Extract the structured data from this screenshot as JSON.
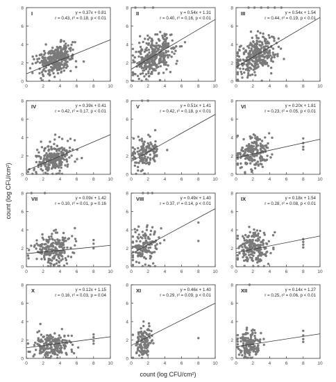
{
  "figure": {
    "ylabel": "count (log CFU/cm²)",
    "xlabel": "count (log CFU/cm²)"
  },
  "chart_data": [
    {
      "type": "scatter",
      "label": "I",
      "equation": "y = 0.37x + 0.81",
      "stats": "r = 0.43, r² = 0.18, p < 0.01",
      "slope": 0.37,
      "intercept": 0.81,
      "cx": 3.5,
      "cy": 2.4,
      "sx": 1.1,
      "sy": 0.8,
      "n": 320,
      "outliers": [],
      "xlim": [
        0,
        10
      ],
      "ylim": [
        0,
        8
      ],
      "xticks": [
        0,
        2,
        4,
        6,
        8,
        10
      ],
      "yticks": [
        0,
        2,
        4,
        6,
        8
      ]
    },
    {
      "type": "scatter",
      "label": "II",
      "equation": "y = 0.54x + 1.31",
      "stats": "r = 0.40, r² = 0.16, p < 0.01",
      "slope": 0.54,
      "intercept": 1.31,
      "cx": 2.7,
      "cy": 2.6,
      "sx": 1.2,
      "sy": 1.0,
      "n": 340,
      "outliers": [
        [
          0.5,
          8
        ],
        [
          1.6,
          8
        ],
        [
          2.6,
          8
        ]
      ],
      "xlim": [
        0,
        10
      ],
      "ylim": [
        0,
        8
      ],
      "xticks": [
        0,
        2,
        4,
        6,
        8,
        10
      ],
      "yticks": [
        0,
        2,
        4,
        6,
        8
      ]
    },
    {
      "type": "scatter",
      "label": "III",
      "equation": "y = 0.54x + 1.54",
      "stats": "r = 0.44, r² = 0.19, p < 0.01",
      "slope": 0.54,
      "intercept": 1.54,
      "cx": 2.5,
      "cy": 2.8,
      "sx": 1.1,
      "sy": 1.0,
      "n": 330,
      "outliers": [
        [
          1.5,
          8
        ],
        [
          2.2,
          8
        ],
        [
          3.0,
          8
        ],
        [
          3.8,
          8
        ],
        [
          4.6,
          8
        ],
        [
          5.4,
          8
        ]
      ],
      "xlim": [
        0,
        10
      ],
      "ylim": [
        0,
        8
      ],
      "xticks": [
        0,
        2,
        4,
        6,
        8,
        10
      ],
      "yticks": [
        0,
        2,
        4,
        6,
        8
      ]
    },
    {
      "type": "scatter",
      "label": "IV",
      "equation": "y = 0.39x + 0.41",
      "stats": "r = 0.42, r² = 0.17, p < 0.01",
      "slope": 0.39,
      "intercept": 0.41,
      "cx": 3.2,
      "cy": 1.7,
      "sx": 1.1,
      "sy": 0.8,
      "n": 250,
      "outliers": [],
      "xlim": [
        0,
        10
      ],
      "ylim": [
        0,
        8
      ],
      "xticks": [
        0,
        2,
        4,
        6,
        8,
        10
      ],
      "yticks": [
        0,
        2,
        4,
        6,
        8
      ]
    },
    {
      "type": "scatter",
      "label": "V",
      "equation": "y = 0.51x + 1.41",
      "stats": "r = 0.42, r² = 0.18, p < 0.01",
      "slope": 0.51,
      "intercept": 1.41,
      "cx": 1.6,
      "cy": 2.3,
      "sx": 0.8,
      "sy": 0.9,
      "n": 140,
      "outliers": [
        [
          1.3,
          8
        ],
        [
          2.0,
          8
        ]
      ],
      "xlim": [
        0,
        10
      ],
      "ylim": [
        0,
        8
      ],
      "xticks": [
        0,
        2,
        4,
        6,
        8,
        10
      ],
      "yticks": [
        0,
        2,
        4,
        6,
        8
      ]
    },
    {
      "type": "scatter",
      "label": "VI",
      "equation": "y = 0.20x + 1.81",
      "stats": "r = 0.23, r² = 0.05, p < 0.01",
      "slope": 0.2,
      "intercept": 1.81,
      "cx": 2.0,
      "cy": 2.3,
      "sx": 0.9,
      "sy": 0.9,
      "n": 190,
      "outliers": [
        [
          8,
          3.9
        ],
        [
          8,
          3.4
        ],
        [
          8,
          3.0
        ],
        [
          8,
          2.7
        ]
      ],
      "xlim": [
        0,
        10
      ],
      "ylim": [
        0,
        8
      ],
      "xticks": [
        0,
        2,
        4,
        6,
        8,
        10
      ],
      "yticks": [
        0,
        2,
        4,
        6,
        8
      ]
    },
    {
      "type": "scatter",
      "label": "VII",
      "equation": "y = 0.09x + 1.42",
      "stats": "r = 0.10, r² = 0.01, p = 0.16",
      "slope": 0.09,
      "intercept": 1.42,
      "cx": 3.3,
      "cy": 1.8,
      "sx": 1.1,
      "sy": 0.8,
      "n": 220,
      "outliers": [
        [
          0.6,
          8
        ],
        [
          2.2,
          8
        ],
        [
          8,
          2.9
        ],
        [
          8,
          2.5
        ],
        [
          8,
          2.0
        ]
      ],
      "xlim": [
        0,
        10
      ],
      "ylim": [
        0,
        8
      ],
      "xticks": [
        0,
        2,
        4,
        6,
        8,
        10
      ],
      "yticks": [
        0,
        2,
        4,
        6,
        8
      ]
    },
    {
      "type": "scatter",
      "label": "VIII",
      "equation": "y = 0.49x + 1.40",
      "stats": "r = 0.37, r² = 0.14, p < 0.01",
      "slope": 0.49,
      "intercept": 1.4,
      "cx": 1.6,
      "cy": 2.2,
      "sx": 0.8,
      "sy": 0.9,
      "n": 150,
      "outliers": [
        [
          1.4,
          8
        ],
        [
          2.0,
          8
        ],
        [
          2.5,
          8
        ],
        [
          8,
          4.8
        ],
        [
          8,
          2.8
        ]
      ],
      "xlim": [
        0,
        10
      ],
      "ylim": [
        0,
        8
      ],
      "xticks": [
        0,
        2,
        4,
        6,
        8,
        10
      ],
      "yticks": [
        0,
        2,
        4,
        6,
        8
      ]
    },
    {
      "type": "scatter",
      "label": "IX",
      "equation": "y = 0.18x + 1.54",
      "stats": "r = 0.28, r² = 0.08, p < 0.01",
      "slope": 0.18,
      "intercept": 1.54,
      "cx": 2.1,
      "cy": 2.0,
      "sx": 1.0,
      "sy": 0.9,
      "n": 190,
      "outliers": [
        [
          8,
          3.0
        ],
        [
          8,
          2.7
        ],
        [
          8,
          2.4
        ],
        [
          8,
          2.1
        ]
      ],
      "xlim": [
        0,
        10
      ],
      "ylim": [
        0,
        8
      ],
      "xticks": [
        0,
        2,
        4,
        6,
        8,
        10
      ],
      "yticks": [
        0,
        2,
        4,
        6,
        8
      ]
    },
    {
      "type": "scatter",
      "label": "X",
      "equation": "y = 0.12x + 1.15",
      "stats": "r = 0.16, r² = 0.03, p = 0.04",
      "slope": 0.12,
      "intercept": 1.15,
      "cx": 3.0,
      "cy": 1.4,
      "sx": 1.1,
      "sy": 0.7,
      "n": 200,
      "outliers": [
        [
          8,
          2.6
        ],
        [
          8,
          2.3
        ],
        [
          8,
          1.9
        ],
        [
          8,
          1.6
        ]
      ],
      "xlim": [
        0,
        10
      ],
      "ylim": [
        0,
        8
      ],
      "xticks": [
        0,
        2,
        4,
        6,
        8,
        10
      ],
      "yticks": [
        0,
        2,
        4,
        6,
        8
      ]
    },
    {
      "type": "scatter",
      "label": "XI",
      "equation": "y = 0.46x + 1.40",
      "stats": "r = 0.29, r² = 0.09, p < 0.01",
      "slope": 0.46,
      "intercept": 1.4,
      "cx": 1.5,
      "cy": 1.7,
      "sx": 0.6,
      "sy": 0.8,
      "n": 130,
      "outliers": [
        [
          8,
          2.2
        ]
      ],
      "xlim": [
        0,
        10
      ],
      "ylim": [
        0,
        8
      ],
      "xticks": [
        0,
        2,
        4,
        6,
        8,
        10
      ],
      "yticks": [
        0,
        2,
        4,
        6,
        8
      ]
    },
    {
      "type": "scatter",
      "label": "XII",
      "equation": "y = 0.14x + 1.27",
      "stats": "r = 0.25, r² = 0.06, p < 0.01",
      "slope": 0.14,
      "intercept": 1.27,
      "cx": 1.6,
      "cy": 1.5,
      "sx": 0.7,
      "sy": 0.8,
      "n": 150,
      "outliers": [
        [
          1.6,
          8
        ],
        [
          8,
          3.0
        ],
        [
          8,
          2.5
        ],
        [
          8,
          2.1
        ],
        [
          8,
          1.8
        ]
      ],
      "xlim": [
        0,
        10
      ],
      "ylim": [
        0,
        8
      ],
      "xticks": [
        0,
        2,
        4,
        6,
        8,
        10
      ],
      "yticks": [
        0,
        2,
        4,
        6,
        8
      ]
    }
  ],
  "colors": {
    "point": "#7a7a7a",
    "line": "#333333",
    "axis": "#333333",
    "tick_text": "#444444",
    "label_text": "#222222"
  }
}
